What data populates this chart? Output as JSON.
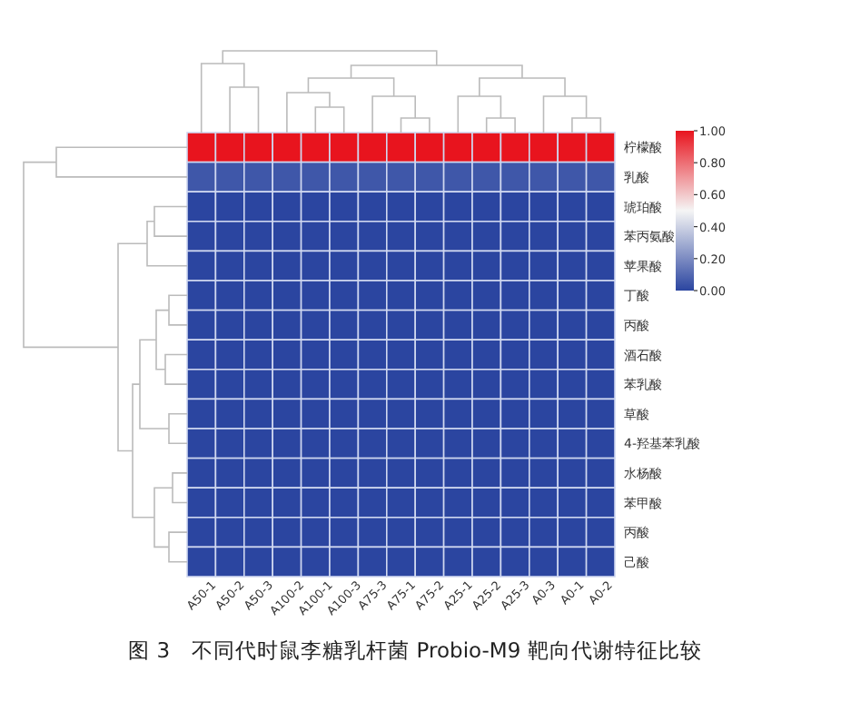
{
  "chart_data": {
    "type": "heatmap",
    "categories": [
      "A50-1",
      "A50-2",
      "A50-3",
      "A100-2",
      "A100-1",
      "A100-3",
      "A75-3",
      "A75-1",
      "A75-2",
      "A25-1",
      "A25-2",
      "A25-3",
      "A0-3",
      "A0-1",
      "A0-2"
    ],
    "y_categories": [
      "柠檬酸",
      "乳酸",
      "琥珀酸",
      "苯丙氨酸",
      "苹果酸",
      "丁酸",
      "丙酸",
      "酒石酸",
      "苯乳酸",
      "草酸",
      "4-羟基苯乳酸",
      "水杨酸",
      "苯甲酸",
      "丙酸",
      "己酸"
    ],
    "cells": [
      [
        1,
        1,
        1,
        1,
        1,
        1,
        1,
        1,
        1,
        1,
        1,
        1,
        1,
        1,
        1
      ],
      [
        0.05,
        0.05,
        0.05,
        0.05,
        0.05,
        0.05,
        0.05,
        0.05,
        0.05,
        0.05,
        0.05,
        0.05,
        0.05,
        0.05,
        0.05
      ],
      [
        0,
        0,
        0,
        0,
        0,
        0,
        0,
        0,
        0,
        0,
        0,
        0,
        0,
        0,
        0
      ],
      [
        0,
        0,
        0,
        0,
        0,
        0,
        0,
        0,
        0,
        0,
        0,
        0,
        0,
        0,
        0
      ],
      [
        0,
        0,
        0,
        0,
        0,
        0,
        0,
        0,
        0,
        0,
        0,
        0,
        0,
        0,
        0
      ],
      [
        0,
        0,
        0,
        0,
        0,
        0,
        0,
        0,
        0,
        0,
        0,
        0,
        0,
        0,
        0
      ],
      [
        0,
        0,
        0,
        0,
        0,
        0,
        0,
        0,
        0,
        0,
        0,
        0,
        0,
        0,
        0
      ],
      [
        0,
        0,
        0,
        0,
        0,
        0,
        0,
        0,
        0,
        0,
        0,
        0,
        0,
        0,
        0
      ],
      [
        0,
        0,
        0,
        0,
        0,
        0,
        0,
        0,
        0,
        0,
        0,
        0,
        0,
        0,
        0
      ],
      [
        0,
        0,
        0,
        0,
        0,
        0,
        0,
        0,
        0,
        0,
        0,
        0,
        0,
        0,
        0
      ],
      [
        0,
        0,
        0,
        0,
        0,
        0,
        0,
        0,
        0,
        0,
        0,
        0,
        0,
        0,
        0
      ],
      [
        0,
        0,
        0,
        0,
        0,
        0,
        0,
        0,
        0,
        0,
        0,
        0,
        0,
        0,
        0
      ],
      [
        0,
        0,
        0,
        0,
        0,
        0,
        0,
        0,
        0,
        0,
        0,
        0,
        0,
        0,
        0
      ],
      [
        0,
        0,
        0,
        0,
        0,
        0,
        0,
        0,
        0,
        0,
        0,
        0,
        0,
        0,
        0
      ],
      [
        0,
        0,
        0,
        0,
        0,
        0,
        0,
        0,
        0,
        0,
        0,
        0,
        0,
        0,
        0
      ]
    ],
    "clim": [
      0,
      1
    ],
    "cticks": [
      {
        "value": 0,
        "label": "0.00"
      },
      {
        "value": 0.2,
        "label": "0.20"
      },
      {
        "value": 0.4,
        "label": "0.40"
      },
      {
        "value": 0.6,
        "label": "0.60"
      },
      {
        "value": 0.8,
        "label": "0.80"
      },
      {
        "value": 1,
        "label": "1.00"
      }
    ],
    "title": "图 3　不同代时鼠李糖乳杆菌 Probio-M9 靶向代谢特征比较"
  }
}
